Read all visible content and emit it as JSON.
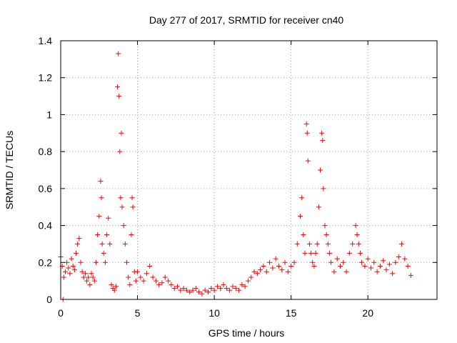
{
  "chart_data": {
    "type": "scatter",
    "title": "Day 277 of 2017, SRMTID for receiver cn40",
    "xlabel": "GPS time / hours",
    "ylabel": "SRMTID / TECUs",
    "xlim": [
      0,
      24.5
    ],
    "ylim": [
      0,
      1.4
    ],
    "xticks": [
      0,
      5,
      10,
      15,
      20
    ],
    "xtick_labels": [
      "0",
      "5",
      "10",
      "15",
      "20"
    ],
    "yticks": [
      0,
      0.2,
      0.4,
      0.6,
      0.8,
      1.0,
      1.2,
      1.4
    ],
    "ytick_labels": [
      "0",
      "0.2",
      "0.4",
      "0.6",
      "0.8",
      "1",
      "1.2",
      "1.4"
    ],
    "grid": true,
    "marker": "+",
    "color": "#ff0000",
    "x": [
      0.0,
      0.1,
      0.2,
      0.3,
      0.4,
      0.5,
      0.6,
      0.7,
      0.8,
      0.9,
      1.0,
      1.1,
      1.2,
      1.3,
      1.4,
      1.5,
      1.6,
      1.7,
      1.8,
      1.9,
      2.0,
      2.1,
      2.2,
      2.3,
      2.4,
      2.5,
      2.6,
      2.65,
      2.7,
      2.8,
      2.9,
      3.0,
      3.1,
      3.2,
      3.3,
      3.4,
      3.5,
      3.6,
      3.7,
      3.75,
      3.8,
      3.85,
      3.9,
      3.95,
      4.0,
      4.1,
      4.2,
      4.3,
      4.4,
      4.5,
      4.6,
      4.65,
      4.7,
      4.8,
      4.9,
      5.0,
      5.2,
      5.4,
      5.6,
      5.8,
      6.0,
      6.2,
      6.4,
      6.6,
      6.8,
      7.0,
      7.2,
      7.4,
      7.6,
      7.8,
      8.0,
      8.2,
      8.4,
      8.6,
      8.8,
      9.0,
      9.2,
      9.4,
      9.6,
      9.8,
      10.0,
      10.2,
      10.4,
      10.6,
      10.8,
      11.0,
      11.2,
      11.4,
      11.6,
      11.8,
      12.0,
      12.2,
      12.4,
      12.6,
      12.8,
      13.0,
      13.2,
      13.4,
      13.6,
      13.8,
      14.0,
      14.2,
      14.4,
      14.6,
      14.8,
      15.0,
      15.2,
      15.4,
      15.6,
      15.7,
      15.8,
      15.9,
      16.0,
      16.05,
      16.1,
      16.2,
      16.3,
      16.4,
      16.5,
      16.6,
      16.7,
      16.8,
      16.9,
      17.0,
      17.05,
      17.1,
      17.2,
      17.3,
      17.4,
      17.5,
      17.6,
      17.8,
      18.0,
      18.2,
      18.4,
      18.6,
      18.8,
      19.0,
      19.2,
      19.3,
      19.4,
      19.5,
      19.6,
      19.8,
      20.0,
      20.2,
      20.4,
      20.6,
      20.8,
      21.0,
      21.2,
      21.4,
      21.6,
      21.8,
      22.0,
      22.2,
      22.4,
      22.6,
      22.8,
      0.15
    ],
    "y": [
      0.23,
      0.18,
      0.12,
      0.15,
      0.2,
      0.17,
      0.14,
      0.22,
      0.18,
      0.16,
      0.25,
      0.3,
      0.33,
      0.2,
      0.15,
      0.12,
      0.14,
      0.1,
      0.12,
      0.08,
      0.14,
      0.12,
      0.1,
      0.2,
      0.35,
      0.45,
      0.64,
      0.55,
      0.3,
      0.25,
      0.2,
      0.35,
      0.44,
      0.3,
      0.08,
      0.06,
      0.05,
      0.07,
      1.15,
      1.33,
      1.1,
      0.8,
      0.55,
      0.9,
      0.5,
      0.4,
      0.3,
      0.2,
      0.12,
      0.08,
      0.35,
      0.55,
      0.5,
      0.15,
      0.1,
      0.15,
      0.12,
      0.1,
      0.14,
      0.18,
      0.12,
      0.1,
      0.08,
      0.09,
      0.12,
      0.1,
      0.08,
      0.06,
      0.07,
      0.05,
      0.06,
      0.05,
      0.04,
      0.05,
      0.06,
      0.04,
      0.03,
      0.05,
      0.04,
      0.06,
      0.05,
      0.07,
      0.06,
      0.08,
      0.06,
      0.05,
      0.07,
      0.06,
      0.05,
      0.08,
      0.07,
      0.1,
      0.12,
      0.15,
      0.14,
      0.16,
      0.18,
      0.15,
      0.2,
      0.17,
      0.22,
      0.18,
      0.16,
      0.2,
      0.15,
      0.18,
      0.2,
      0.3,
      0.45,
      0.55,
      0.35,
      0.25,
      0.95,
      0.9,
      0.75,
      0.3,
      0.25,
      0.2,
      0.18,
      0.25,
      0.3,
      0.5,
      0.7,
      0.9,
      0.86,
      0.6,
      0.4,
      0.35,
      0.3,
      0.25,
      0.2,
      0.15,
      0.22,
      0.18,
      0.2,
      0.15,
      0.25,
      0.3,
      0.4,
      0.35,
      0.3,
      0.25,
      0.2,
      0.18,
      0.22,
      0.17,
      0.2,
      0.15,
      0.18,
      0.21,
      0.16,
      0.19,
      0.14,
      0.2,
      0.23,
      0.3,
      0.22,
      0.18,
      0.13,
      0.0
    ]
  }
}
